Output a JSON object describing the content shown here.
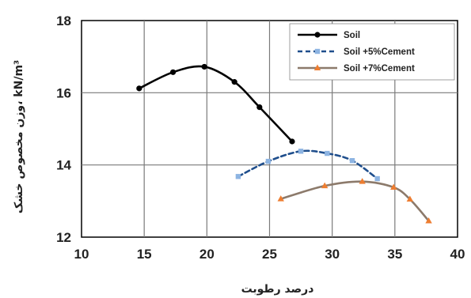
{
  "chart_data": {
    "type": "line",
    "title": "",
    "xlabel": "درصد رطوبت",
    "ylabel": "وزن مخصوص خشک، kN/m³",
    "xlim": [
      10,
      40
    ],
    "ylim": [
      12,
      18
    ],
    "xticks": [
      10,
      15,
      20,
      25,
      30,
      35,
      40
    ],
    "yticks": [
      12,
      14,
      16,
      18
    ],
    "grid": true,
    "legend_position": "top-right",
    "series": [
      {
        "name": "Soil",
        "color": "#000000",
        "line_style": "solid",
        "marker": "circle",
        "x": [
          14.6,
          17.3,
          19.8,
          22.2,
          24.2,
          26.8
        ],
        "y": [
          16.12,
          16.57,
          16.72,
          16.3,
          15.6,
          14.65
        ]
      },
      {
        "name": "Soil +5%Cement",
        "color": "#1f4e8c",
        "marker_color": "#8db4e2",
        "line_style": "dashed",
        "marker": "square",
        "x": [
          22.5,
          24.9,
          27.5,
          29.6,
          31.6,
          33.6
        ],
        "y": [
          13.68,
          14.1,
          14.38,
          14.32,
          14.12,
          13.62
        ]
      },
      {
        "name": "Soil +7%Cement",
        "color": "#8c7a6b",
        "marker_color": "#ed7d31",
        "line_style": "solid",
        "marker": "triangle",
        "x": [
          25.9,
          29.4,
          32.4,
          34.9,
          36.2,
          37.7
        ],
        "y": [
          13.06,
          13.42,
          13.54,
          13.38,
          13.05,
          12.45
        ]
      }
    ]
  }
}
